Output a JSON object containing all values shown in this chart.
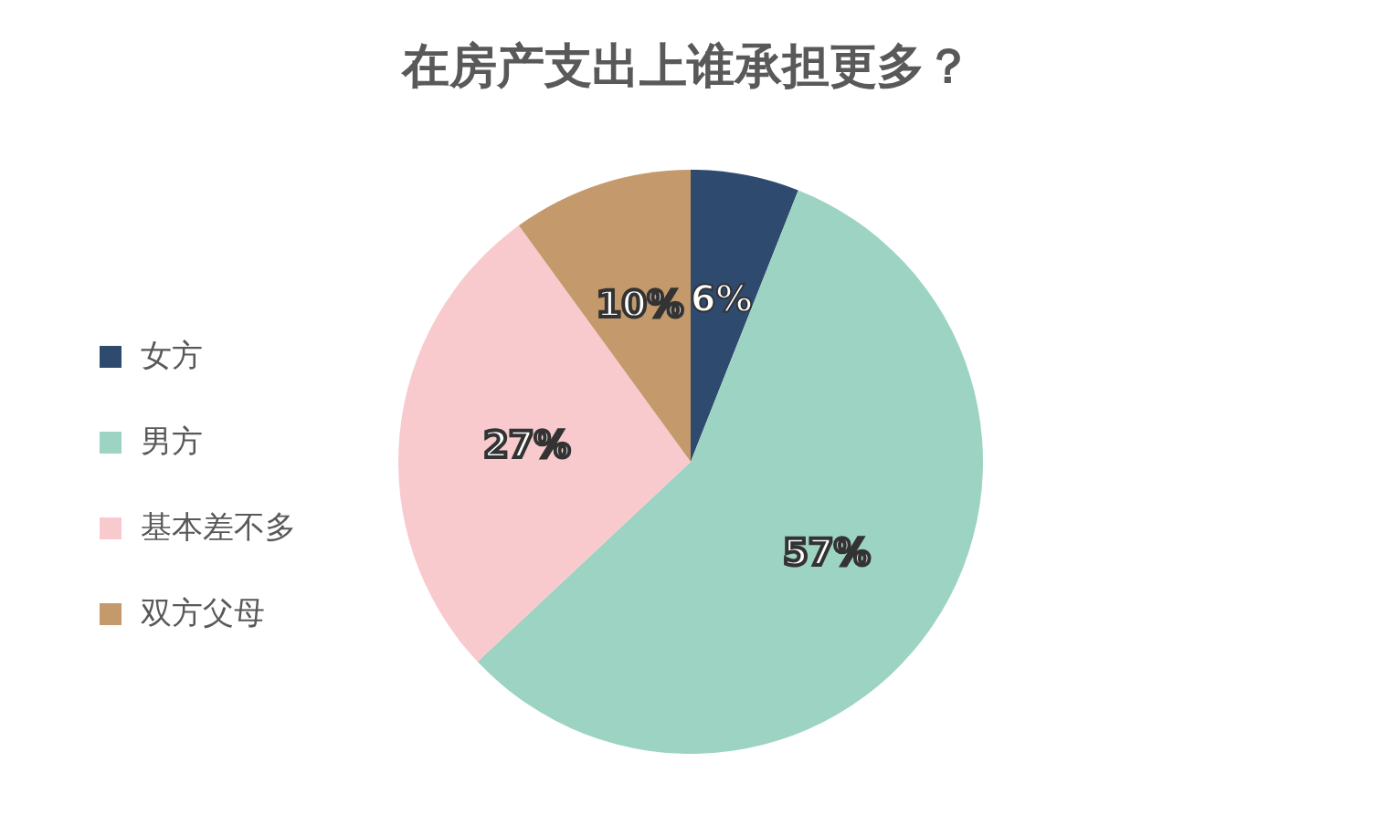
{
  "chart_data": {
    "type": "pie",
    "title": "在房产支出上谁承担更多？",
    "categories": [
      "女方",
      "男方",
      "基本差不多",
      "双方父母"
    ],
    "values": [
      6,
      57,
      27,
      10
    ],
    "colors": [
      "#2e4a6e",
      "#9dd3c2",
      "#f9cacd",
      "#c49a6c"
    ],
    "value_labels": [
      "6%",
      "57%",
      "27%",
      "10%"
    ],
    "legend": "left"
  }
}
